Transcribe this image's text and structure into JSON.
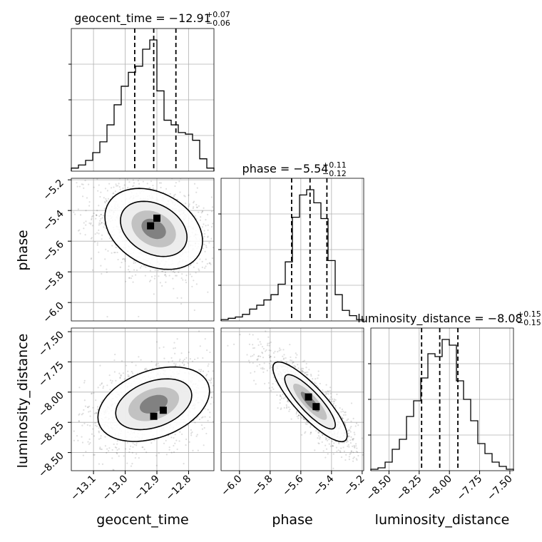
{
  "chart_data": {
    "type": "corner",
    "parameters": [
      {
        "key": "geocent_time",
        "axis_label": "geocent_time",
        "title_main": "geocent_time = −12.91",
        "title_plus": "+0.07",
        "title_minus": "−0.06",
        "range": [
          -13.17,
          -12.72
        ],
        "ticks": [
          -13.1,
          -13.0,
          -12.9,
          -12.8
        ],
        "tick_labels": [
          "−13.1",
          "−13.0",
          "−12.9",
          "−12.8"
        ],
        "quantiles": [
          -12.97,
          -12.91,
          -12.84
        ],
        "hist_counts": [
          0.02,
          0.04,
          0.07,
          0.12,
          0.19,
          0.3,
          0.43,
          0.55,
          0.64,
          0.68,
          0.79,
          0.85,
          0.52,
          0.33,
          0.3,
          0.25,
          0.24,
          0.2,
          0.08,
          0.02
        ]
      },
      {
        "key": "phase",
        "axis_label": "phase",
        "title_main": "phase = −5.54",
        "title_plus": "+0.11",
        "title_minus": "−0.12",
        "range": [
          -6.12,
          -5.19
        ],
        "ticks": [
          -6.0,
          -5.8,
          -5.6,
          -5.4,
          -5.2
        ],
        "tick_labels": [
          "−6.0",
          "−5.8",
          "−5.6",
          "−5.4",
          "−5.2"
        ],
        "quantiles": [
          -5.66,
          -5.54,
          -5.43
        ],
        "hist_counts": [
          0.01,
          0.02,
          0.03,
          0.05,
          0.09,
          0.12,
          0.16,
          0.2,
          0.28,
          0.45,
          0.79,
          0.96,
          1.0,
          0.9,
          0.78,
          0.46,
          0.2,
          0.08,
          0.04,
          0.01
        ]
      },
      {
        "key": "luminosity_distance",
        "axis_label": "luminosity_distance",
        "title_main": "luminosity_distance = −8.08",
        "title_plus": "+0.15",
        "title_minus": "−0.15",
        "range": [
          -8.65,
          -7.47
        ],
        "ticks": [
          -8.5,
          -8.25,
          -8.0,
          -7.75,
          -7.5
        ],
        "tick_labels": [
          "−8.50",
          "−8.25",
          "−8.00",
          "−7.75",
          "−7.50"
        ],
        "quantiles": [
          -8.23,
          -8.08,
          -7.93
        ],
        "hist_counts": [
          0.01,
          0.02,
          0.06,
          0.15,
          0.22,
          0.38,
          0.49,
          0.65,
          0.82,
          0.8,
          0.92,
          0.88,
          0.63,
          0.5,
          0.35,
          0.19,
          0.12,
          0.06,
          0.03,
          0.01
        ]
      }
    ],
    "pairs": [
      {
        "x": "geocent_time",
        "y": "phase",
        "center": [
          -12.91,
          -5.52
        ],
        "sd": [
          0.07,
          0.12
        ],
        "rho": -0.3,
        "modes": [
          [
            -12.9,
            -5.45
          ],
          [
            -12.92,
            -5.5
          ]
        ]
      },
      {
        "x": "geocent_time",
        "y": "luminosity_distance",
        "center": [
          -12.91,
          -8.1
        ],
        "sd": [
          0.08,
          0.14
        ],
        "rho": 0.35,
        "modes": [
          [
            -12.91,
            -8.2
          ],
          [
            -12.88,
            -8.15
          ]
        ]
      },
      {
        "x": "phase",
        "y": "luminosity_distance",
        "center": [
          -5.54,
          -8.08
        ],
        "sd": [
          0.11,
          0.15
        ],
        "rho": -0.85,
        "modes": [
          [
            -5.55,
            -8.04
          ],
          [
            -5.5,
            -8.12
          ]
        ]
      }
    ],
    "grid": true,
    "quantile_line_style": "dashed"
  }
}
